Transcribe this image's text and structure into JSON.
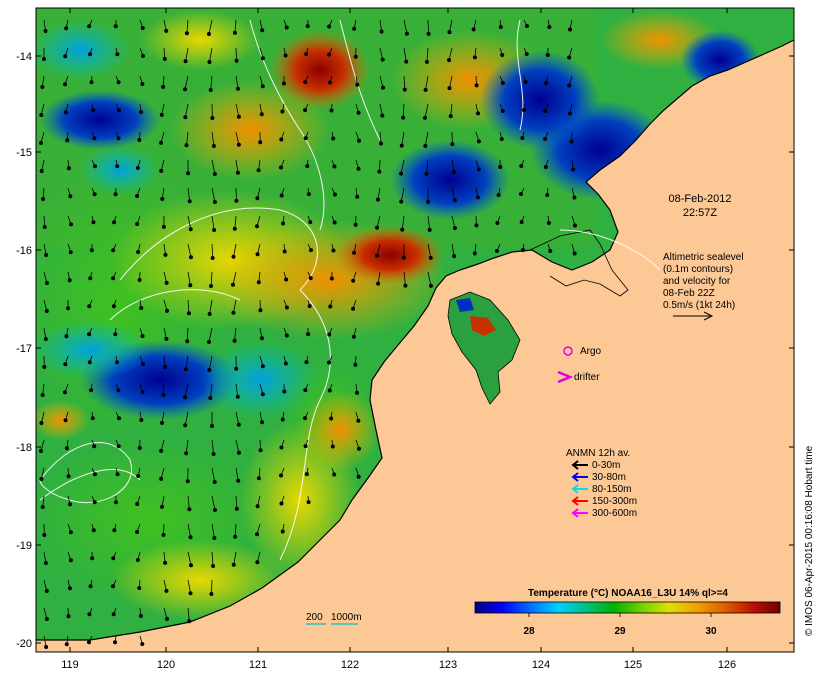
{
  "map": {
    "timestamp_date": "08-Feb-2012",
    "timestamp_time": "22:57Z",
    "x_ticks": [
      "119",
      "120",
      "121",
      "122",
      "123",
      "124",
      "125",
      "126"
    ],
    "y_ticks": [
      "-14",
      "-15",
      "-16",
      "-17",
      "-18",
      "-19",
      "-20"
    ],
    "land_color": "#fcc896"
  },
  "altimetry": {
    "line1": "Altimetric sealevel",
    "line2": "(0.1m contours)",
    "line3": "and velocity for",
    "line4": "08-Feb 22Z",
    "line5": "0.5m/s (1kt 24h)"
  },
  "argo": {
    "label": "Argo",
    "color": "#e000e0"
  },
  "drifter": {
    "label": "drifter",
    "color": "#e000e0"
  },
  "anmn": {
    "title": "ANMN 12h av.",
    "items": [
      {
        "label": "0-30m",
        "color": "#000000"
      },
      {
        "label": "30-80m",
        "color": "#0000ff"
      },
      {
        "label": "80-150m",
        "color": "#00e0e0"
      },
      {
        "label": "150-300m",
        "color": "#ff0000"
      },
      {
        "label": "300-600m",
        "color": "#ff00ff"
      }
    ]
  },
  "depth_contours": {
    "label_200": "200",
    "label_1000": "1000m"
  },
  "colorbar": {
    "title": "Temperature (°C) NOAA16_L3U 14% ql>=4",
    "ticks": [
      "28",
      "29",
      "30"
    ],
    "stops": [
      "#00007a",
      "#0000ff",
      "#0070ff",
      "#00d0ff",
      "#00c080",
      "#00b000",
      "#70d000",
      "#e0e000",
      "#f0a000",
      "#e06000",
      "#c01000",
      "#700000"
    ]
  },
  "credit": "© IMOS 06-Apr-2015 00:16:08 Hobart time"
}
